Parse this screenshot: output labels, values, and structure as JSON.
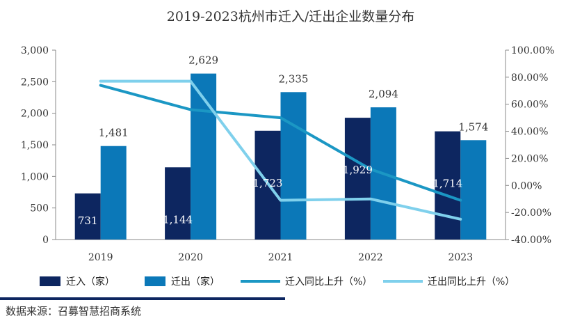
{
  "chart_data": {
    "type": "bar",
    "title": "2019-2023杭州市迁入/迁出企业数量分布",
    "categories": [
      "2019",
      "2020",
      "2021",
      "2022",
      "2023"
    ],
    "series": [
      {
        "name": "迁入（家）",
        "kind": "bar",
        "axis": "left",
        "color": "#0d2660",
        "values": [
          731,
          1144,
          1723,
          1929,
          1714
        ],
        "labels": [
          "731",
          "1,144",
          "1,723",
          "1,929",
          "1,714"
        ]
      },
      {
        "name": "迁出（家）",
        "kind": "bar",
        "axis": "left",
        "color": "#0b78b8",
        "values": [
          1481,
          2629,
          2335,
          2094,
          1574
        ],
        "labels": [
          "1,481",
          "2,629",
          "2,335",
          "2,094",
          "1,574"
        ]
      },
      {
        "name": "迁入同比上升（%）",
        "kind": "line",
        "axis": "right",
        "color": "#1b97c4",
        "values": [
          74,
          56,
          50,
          12,
          -11
        ]
      },
      {
        "name": "迁出同比上升（%）",
        "kind": "line",
        "axis": "right",
        "color": "#7fd0ec",
        "values": [
          77,
          77,
          -11,
          -10,
          -25
        ]
      }
    ],
    "y_left": {
      "min": 0,
      "max": 3000,
      "ticks": [
        0,
        500,
        1000,
        1500,
        2000,
        2500,
        3000
      ],
      "tick_labels": [
        "0",
        "500",
        "1,000",
        "1,500",
        "2,000",
        "2,500",
        "3,000"
      ]
    },
    "y_right": {
      "min": -40,
      "max": 100,
      "ticks": [
        -40,
        -20,
        0,
        20,
        40,
        60,
        80,
        100
      ],
      "tick_labels": [
        "-40.00%",
        "-20.00%",
        "0.00%",
        "20.00%",
        "40.00%",
        "60.00%",
        "80.00%",
        "100.00%"
      ]
    },
    "legend_position": "bottom",
    "source": "数据来源：召募智慧招商系统"
  }
}
